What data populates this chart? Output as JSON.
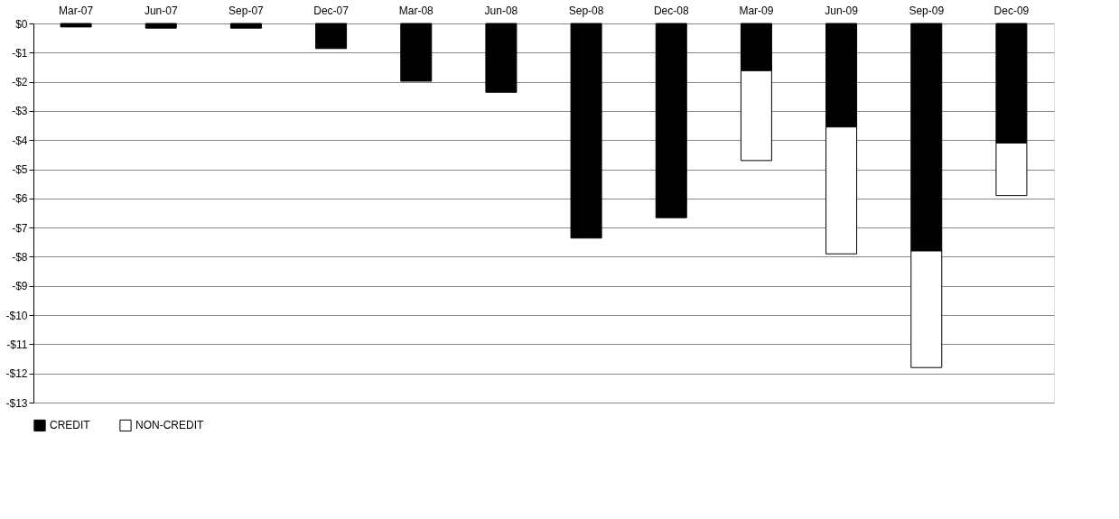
{
  "chart_data": {
    "type": "bar",
    "stacked": true,
    "categories": [
      "Mar-07",
      "Jun-07",
      "Sep-07",
      "Dec-07",
      "Mar-08",
      "Jun-08",
      "Sep-08",
      "Dec-08",
      "Mar-09",
      "Jun-09",
      "Sep-09",
      "Dec-09"
    ],
    "series": [
      {
        "name": "CREDIT",
        "color": "#000000",
        "values": [
          -0.12,
          -0.16,
          -0.16,
          -0.86,
          -1.98,
          -2.36,
          -7.36,
          -6.66,
          -1.62,
          -3.55,
          -7.8,
          -4.1
        ]
      },
      {
        "name": "NON-CREDIT",
        "color": "#ffffff",
        "values": [
          null,
          null,
          null,
          null,
          null,
          null,
          null,
          null,
          -3.08,
          -4.35,
          -4.0,
          -1.8
        ]
      }
    ],
    "ylim": [
      -13,
      0
    ],
    "yticks": [
      {
        "value": 0,
        "label": "$0"
      },
      {
        "value": -1,
        "label": "-$1"
      },
      {
        "value": -2,
        "label": "-$2"
      },
      {
        "value": -3,
        "label": "-$3"
      },
      {
        "value": -4,
        "label": "-$4"
      },
      {
        "value": -5,
        "label": "-$5"
      },
      {
        "value": -6,
        "label": "-$6"
      },
      {
        "value": -7,
        "label": "-$7"
      },
      {
        "value": -8,
        "label": "-$8"
      },
      {
        "value": -9,
        "label": "-$9"
      },
      {
        "value": -10,
        "label": "-$10"
      },
      {
        "value": -11,
        "label": "-$11"
      },
      {
        "value": -12,
        "label": "-$12"
      },
      {
        "value": -13,
        "label": "-$13"
      }
    ],
    "grid": "y",
    "legend": "bottom"
  }
}
